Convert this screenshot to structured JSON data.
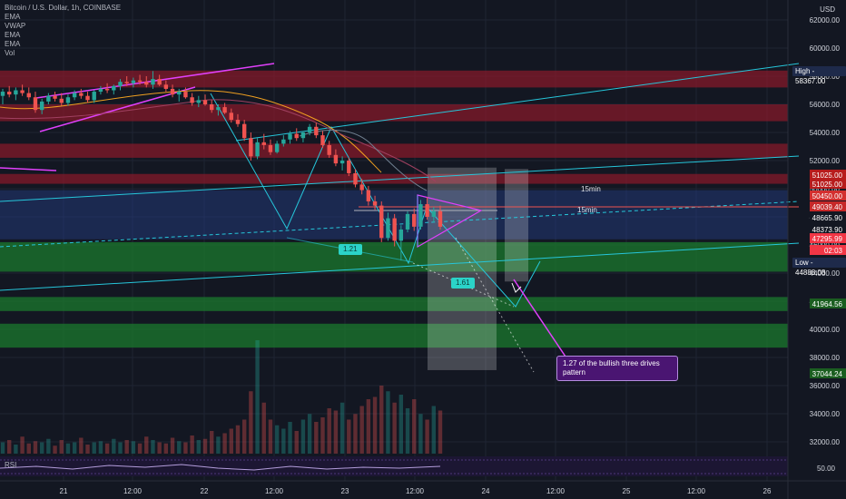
{
  "header": {
    "symbol_line": "Bitcoin / U.S. Dollar, 1h, COINBASE",
    "indicators": [
      "EMA",
      "VWAP",
      "EMA",
      "EMA",
      "Vol"
    ]
  },
  "currency_label": "USD",
  "price_axis": {
    "ticks": [
      "62000.00",
      "60000.00",
      "58000.00",
      "56000.00",
      "54000.00",
      "52000.00",
      "50000.00",
      "48000.00",
      "46000.00",
      "44000.00",
      "42000.00",
      "40000.00",
      "38000.00",
      "36000.00",
      "34000.00",
      "32000.00"
    ],
    "tags": [
      {
        "text": "51025.00",
        "color": "#b71c1c"
      },
      {
        "text": "51025.00",
        "color": "#b71c1c"
      },
      {
        "text": "50450.00",
        "color": "#d32f2f"
      },
      {
        "text": "49039.40",
        "color": "#c62828"
      },
      {
        "text": "48665.90",
        "color": "#131722"
      },
      {
        "text": "48373.90",
        "color": "#131722"
      },
      {
        "text": "47295.99",
        "color": "#f23645"
      },
      {
        "text": "02:03",
        "color": "#f23645"
      },
      {
        "text": "41964.56",
        "color": "#1b5e20"
      },
      {
        "text": "37044.24",
        "color": "#1b5e20"
      }
    ],
    "high_label": "High",
    "high_value": "58367.00",
    "low_label": "Low",
    "low_value": "44888.08"
  },
  "time_axis": {
    "ticks": [
      "21",
      "12:00",
      "22",
      "12:00",
      "23",
      "12:00",
      "24",
      "12:00",
      "25",
      "12:00",
      "26"
    ]
  },
  "annotations": {
    "note": "1.27 of the bullish three drives pattern",
    "badge_1": "1.21",
    "badge_2": "1.61",
    "label_15min_1": "15min",
    "label_15min_2": "15min"
  },
  "rsi": {
    "label": "RSI",
    "value": "50.00"
  },
  "colors": {
    "background": "#131722",
    "up_candle": "#26a69a",
    "down_candle": "#ef5350",
    "resistance_zone": "#8b1a2a",
    "support_zone": "#1b7a2e",
    "pattern_line": "#26c6da",
    "wedge_line": "#e040fb"
  },
  "chart_data": {
    "type": "candlestick",
    "title": "Bitcoin / U.S. Dollar, 1h, COINBASE",
    "y_unit": "USD",
    "ylim": [
      31000,
      63000
    ],
    "x_ticks": [
      "21",
      "12:00",
      "22",
      "12:00",
      "23",
      "12:00",
      "24",
      "12:00",
      "25",
      "12:00",
      "26"
    ],
    "high": 58367.0,
    "low": 44888.08,
    "last_price": 47295.99,
    "grid": true,
    "candles": [
      [
        56600,
        57100,
        56000,
        56900
      ],
      [
        56900,
        57300,
        56500,
        56700
      ],
      [
        56700,
        57200,
        56300,
        57000
      ],
      [
        57000,
        57400,
        56600,
        56800
      ],
      [
        56800,
        57200,
        56300,
        56500
      ],
      [
        56500,
        56900,
        55400,
        55600
      ],
      [
        55600,
        56400,
        55300,
        56200
      ],
      [
        56200,
        56800,
        56000,
        56600
      ],
      [
        56600,
        56900,
        56200,
        56400
      ],
      [
        56400,
        56800,
        55900,
        56100
      ],
      [
        56100,
        56700,
        55900,
        56500
      ],
      [
        56500,
        57000,
        56300,
        56800
      ],
      [
        56800,
        57100,
        56400,
        56600
      ],
      [
        56600,
        56900,
        56100,
        56300
      ],
      [
        56300,
        57000,
        56100,
        56900
      ],
      [
        56900,
        57300,
        56700,
        57100
      ],
      [
        57100,
        57500,
        56800,
        57000
      ],
      [
        57000,
        57400,
        56700,
        57300
      ],
      [
        57300,
        57800,
        57000,
        57600
      ],
      [
        57600,
        58000,
        57300,
        57500
      ],
      [
        57500,
        57900,
        57200,
        57700
      ],
      [
        57700,
        58100,
        57400,
        57600
      ],
      [
        57600,
        58000,
        57200,
        57400
      ],
      [
        57400,
        58367,
        57100,
        57800
      ],
      [
        57800,
        58100,
        57300,
        57400
      ],
      [
        57400,
        57700,
        56900,
        57100
      ],
      [
        57100,
        57400,
        56500,
        56700
      ],
      [
        56700,
        57100,
        56200,
        56900
      ],
      [
        56900,
        57200,
        56400,
        56500
      ],
      [
        56500,
        56800,
        55900,
        56100
      ],
      [
        56100,
        56600,
        55800,
        56300
      ],
      [
        56300,
        56700,
        55900,
        56000
      ],
      [
        56000,
        56300,
        55400,
        55600
      ],
      [
        55600,
        56000,
        55200,
        55800
      ],
      [
        55800,
        56100,
        55300,
        55400
      ],
      [
        55400,
        55700,
        54700,
        54900
      ],
      [
        54900,
        55300,
        54400,
        54600
      ],
      [
        54600,
        54900,
        53400,
        53600
      ],
      [
        53600,
        54000,
        52000,
        52300
      ],
      [
        52300,
        53600,
        52100,
        53300
      ],
      [
        53300,
        53900,
        52800,
        53100
      ],
      [
        53100,
        53500,
        52400,
        52600
      ],
      [
        52600,
        53400,
        52500,
        53200
      ],
      [
        53200,
        53800,
        53000,
        53500
      ],
      [
        53500,
        54100,
        53200,
        53900
      ],
      [
        53900,
        54300,
        53400,
        53600
      ],
      [
        53600,
        54100,
        53300,
        54000
      ],
      [
        54000,
        54600,
        53800,
        54400
      ],
      [
        54400,
        54700,
        53600,
        53800
      ],
      [
        53800,
        54100,
        52900,
        53100
      ],
      [
        53100,
        53400,
        52200,
        52400
      ],
      [
        52400,
        52800,
        51600,
        51800
      ],
      [
        51800,
        52300,
        51300,
        52000
      ],
      [
        52000,
        52200,
        50900,
        51100
      ],
      [
        51100,
        51400,
        50100,
        50300
      ],
      [
        50300,
        50700,
        49600,
        49900
      ],
      [
        49900,
        50200,
        48800,
        49100
      ],
      [
        49100,
        49500,
        48500,
        48800
      ],
      [
        48800,
        49100,
        46200,
        46500
      ],
      [
        46500,
        48300,
        46300,
        47900
      ],
      [
        47900,
        48200,
        45900,
        46300
      ],
      [
        46300,
        47400,
        44888,
        47100
      ],
      [
        47100,
        48400,
        46900,
        48200
      ],
      [
        48200,
        48600,
        47000,
        47300
      ],
      [
        47300,
        49200,
        47100,
        48900
      ],
      [
        48900,
        49400,
        47800,
        48000
      ],
      [
        48000,
        48700,
        47600,
        48400
      ],
      [
        48400,
        48800,
        47100,
        47296
      ]
    ],
    "volumes": [
      0.1,
      0.12,
      0.08,
      0.15,
      0.09,
      0.11,
      0.1,
      0.13,
      0.07,
      0.12,
      0.09,
      0.1,
      0.14,
      0.08,
      0.1,
      0.11,
      0.09,
      0.13,
      0.1,
      0.12,
      0.11,
      0.09,
      0.15,
      0.12,
      0.1,
      0.09,
      0.14,
      0.11,
      0.1,
      0.16,
      0.12,
      0.13,
      0.2,
      0.15,
      0.18,
      0.22,
      0.25,
      0.3,
      0.55,
      1.0,
      0.45,
      0.3,
      0.25,
      0.22,
      0.28,
      0.2,
      0.3,
      0.35,
      0.28,
      0.32,
      0.4,
      0.38,
      0.45,
      0.3,
      0.35,
      0.42,
      0.48,
      0.5,
      0.6,
      0.55,
      0.45,
      0.52,
      0.4,
      0.48,
      0.35,
      0.3,
      0.42,
      0.38
    ],
    "resistance_zones": [
      [
        57200,
        58400
      ],
      [
        54800,
        56000
      ],
      [
        52200,
        53200
      ],
      [
        50350,
        51050
      ]
    ],
    "support_zones": [
      [
        44100,
        46200
      ],
      [
        41300,
        42300
      ],
      [
        38700,
        40400
      ]
    ],
    "measured_move_boxes": [
      [
        37100,
        51500
      ],
      [
        43400,
        51400
      ]
    ]
  }
}
